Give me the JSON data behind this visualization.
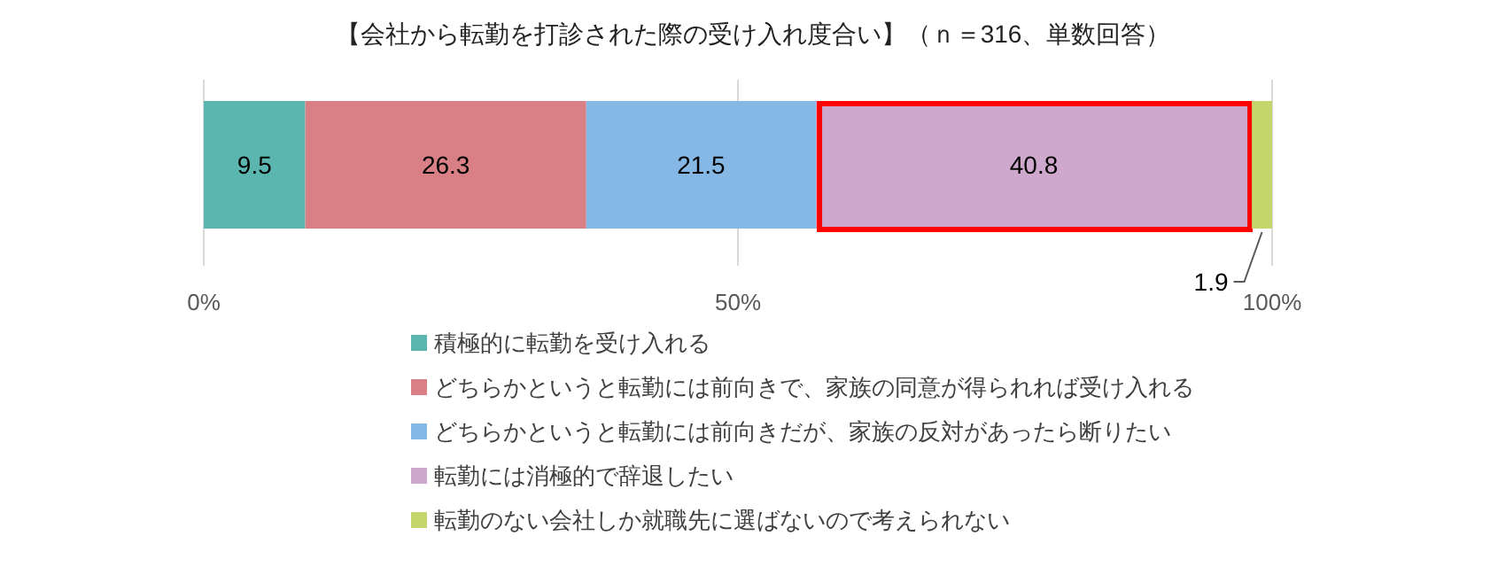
{
  "chart_data": {
    "type": "bar",
    "orientation": "horizontal",
    "stacked": true,
    "title": "【会社から転勤を打診された際の受け入れ度合い】（ｎ＝316、単数回答）",
    "categories": [
      null
    ],
    "series": [
      {
        "name": "積極的に転勤を受け入れる",
        "color": "#5bb6b0",
        "values": [
          9.5
        ]
      },
      {
        "name": "どちらかというと転勤には前向きで、家族の同意が得られれば受け入れる",
        "color": "#d98087",
        "values": [
          26.3
        ]
      },
      {
        "name": "どちらかというと転勤には前向きだが、家族の反対があったら断りたい",
        "color": "#86b8e6",
        "values": [
          21.5
        ]
      },
      {
        "name": "転勤には消極的で辞退したい",
        "color": "#cfa8ce",
        "values": [
          40.8
        ]
      },
      {
        "name": "転勤のない会社しか就職先に選ばないので考えられない",
        "color": "#c5d66c",
        "values": [
          1.9
        ]
      }
    ],
    "xlim": [
      0,
      100
    ],
    "xticks": [
      {
        "value": 0,
        "label": "0%"
      },
      {
        "value": 50,
        "label": "50%"
      },
      {
        "value": 100,
        "label": "100%"
      }
    ],
    "grid": "x",
    "legend": "bottom",
    "data_labels": true
  }
}
